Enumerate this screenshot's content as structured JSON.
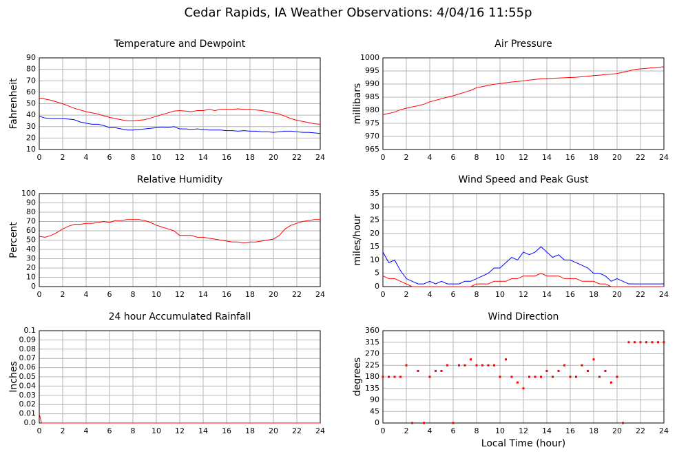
{
  "title": "Cedar Rapids, IA Weather Observations: 4/04/16 11:55p",
  "chart_data": [
    {
      "type": "line",
      "title": "Temperature and Dewpoint",
      "y_label": "Fahrenheit",
      "x": [
        0,
        0.5,
        1,
        1.5,
        2,
        2.5,
        3,
        3.5,
        4,
        4.5,
        5,
        5.5,
        6,
        6.5,
        7,
        7.5,
        8,
        8.5,
        9,
        9.5,
        10,
        10.5,
        11,
        11.5,
        12,
        12.5,
        13,
        13.5,
        14,
        14.5,
        15,
        15.5,
        16,
        16.5,
        17,
        17.5,
        18,
        18.5,
        19,
        19.5,
        20,
        20.5,
        21,
        21.5,
        22,
        22.5,
        23,
        23.5,
        24
      ],
      "series": [
        {
          "color": "#ff0000",
          "values": [
            55,
            54,
            53,
            51.5,
            50,
            48,
            46,
            44.5,
            43,
            42,
            41,
            39.5,
            38,
            37,
            36,
            35,
            35,
            35.5,
            36,
            37.5,
            39,
            40.5,
            42,
            43.5,
            44,
            43.5,
            43,
            44,
            44,
            45,
            44,
            45,
            45,
            45,
            45.5,
            45,
            45,
            44.5,
            44,
            43,
            42,
            41,
            39,
            37,
            35.5,
            34.5,
            33.5,
            32.5,
            32
          ]
        },
        {
          "color": "#0000ff",
          "values": [
            39,
            37.5,
            37,
            37,
            37,
            36.5,
            36,
            34,
            33,
            32,
            32,
            31,
            29,
            29,
            28,
            27,
            27,
            27.5,
            28,
            28.5,
            29,
            29.5,
            29,
            30,
            28,
            28,
            27.5,
            28,
            27.5,
            27,
            27,
            27,
            26.5,
            26.5,
            26,
            26.5,
            26,
            26,
            25.5,
            25.5,
            25,
            25.5,
            26,
            26,
            25.5,
            25,
            25,
            24.5,
            24
          ]
        }
      ],
      "xlim": [
        0,
        24
      ],
      "xticks": [
        0,
        2,
        4,
        6,
        8,
        10,
        12,
        14,
        16,
        18,
        20,
        22,
        24
      ],
      "ylim": [
        10,
        90
      ],
      "yticks": [
        10,
        20,
        30,
        40,
        50,
        60,
        70,
        80,
        90
      ],
      "grid": true
    },
    {
      "type": "line",
      "title": "Air Pressure",
      "y_label": "millibars",
      "x": [
        0,
        0.5,
        1,
        1.5,
        2,
        2.5,
        3,
        3.5,
        4,
        4.5,
        5,
        5.5,
        6,
        6.5,
        7,
        7.5,
        8,
        8.5,
        9,
        9.5,
        10,
        10.5,
        11,
        11.5,
        12,
        12.5,
        13,
        13.5,
        14,
        14.5,
        15,
        15.5,
        16,
        16.5,
        17,
        17.5,
        18,
        18.5,
        19,
        19.5,
        20,
        20.5,
        21,
        21.5,
        22,
        22.5,
        23,
        23.5,
        24
      ],
      "series": [
        {
          "color": "#ff0000",
          "values": [
            978.3,
            978.8,
            979.3,
            980.2,
            980.8,
            981.3,
            981.7,
            982.3,
            983.2,
            983.8,
            984.4,
            985,
            985.5,
            986.2,
            986.9,
            987.6,
            988.6,
            989,
            989.5,
            989.9,
            990.2,
            990.5,
            990.8,
            991,
            991.2,
            991.5,
            991.8,
            992,
            992.1,
            992.2,
            992.3,
            992.4,
            992.5,
            992.6,
            992.8,
            993,
            993.2,
            993.4,
            993.6,
            993.8,
            994,
            994.5,
            995,
            995.6,
            995.8,
            996,
            996.2,
            996.4,
            996.6
          ]
        }
      ],
      "xlim": [
        0,
        24
      ],
      "xticks": [
        0,
        2,
        4,
        6,
        8,
        10,
        12,
        14,
        16,
        18,
        20,
        22,
        24
      ],
      "ylim": [
        965,
        1000
      ],
      "yticks": [
        965,
        970,
        975,
        980,
        985,
        990,
        995,
        1000
      ],
      "grid": true
    },
    {
      "type": "line",
      "title": "Relative Humidity",
      "y_label": "Percent",
      "x": [
        0,
        0.5,
        1,
        1.5,
        2,
        2.5,
        3,
        3.5,
        4,
        4.5,
        5,
        5.5,
        6,
        6.5,
        7,
        7.5,
        8,
        8.5,
        9,
        9.5,
        10,
        10.5,
        11,
        11.5,
        12,
        12.5,
        13,
        13.5,
        14,
        14.5,
        15,
        15.5,
        16,
        16.5,
        17,
        17.5,
        18,
        18.5,
        19,
        19.5,
        20,
        20.5,
        21,
        21.5,
        22,
        22.5,
        23,
        23.5,
        24
      ],
      "series": [
        {
          "color": "#ff0000",
          "values": [
            54,
            53,
            55,
            58,
            62,
            65,
            67,
            67,
            68,
            68,
            69,
            70,
            69,
            71,
            71,
            72,
            72,
            72,
            71,
            69,
            66,
            64,
            62,
            60,
            55,
            55,
            55,
            53,
            53,
            52,
            51,
            50,
            49,
            48,
            48,
            47,
            48,
            48,
            49,
            50,
            51,
            55,
            62,
            66,
            68,
            70,
            71,
            72,
            72
          ]
        }
      ],
      "xlim": [
        0,
        24
      ],
      "xticks": [
        0,
        2,
        4,
        6,
        8,
        10,
        12,
        14,
        16,
        18,
        20,
        22,
        24
      ],
      "ylim": [
        0,
        100
      ],
      "yticks": [
        0,
        10,
        20,
        30,
        40,
        50,
        60,
        70,
        80,
        90,
        100
      ],
      "grid": true
    },
    {
      "type": "line",
      "title": "Wind Speed and Peak Gust",
      "y_label": "miles/hour",
      "x": [
        0,
        0.5,
        1,
        1.5,
        2,
        2.5,
        3,
        3.5,
        4,
        4.5,
        5,
        5.5,
        6,
        6.5,
        7,
        7.5,
        8,
        8.5,
        9,
        9.5,
        10,
        10.5,
        11,
        11.5,
        12,
        12.5,
        13,
        13.5,
        14,
        14.5,
        15,
        15.5,
        16,
        16.5,
        17,
        17.5,
        18,
        18.5,
        19,
        19.5,
        20,
        20.5,
        21,
        21.5,
        22,
        22.5,
        23,
        23.5,
        24
      ],
      "series": [
        {
          "color": "#0000ff",
          "values": [
            13,
            9,
            10,
            6,
            3,
            2,
            1,
            1,
            2,
            1,
            2,
            1,
            1,
            1,
            2,
            2,
            3,
            4,
            5,
            7,
            7,
            9,
            11,
            10,
            13,
            12,
            13,
            15,
            13,
            11,
            12,
            10,
            10,
            9,
            8,
            7,
            5,
            5,
            4,
            2,
            3,
            2,
            1,
            1,
            1,
            1,
            1,
            1,
            1
          ]
        },
        {
          "color": "#ff0000",
          "values": [
            4,
            3,
            3,
            2,
            1,
            0,
            0,
            0,
            0,
            0,
            0,
            0,
            0,
            0,
            0,
            0,
            1,
            1,
            1,
            2,
            2,
            2,
            3,
            3,
            4,
            4,
            4,
            5,
            4,
            4,
            4,
            3,
            3,
            3,
            2,
            2,
            2,
            1,
            1,
            0,
            0,
            0,
            0,
            0,
            0,
            0,
            0,
            0,
            0
          ]
        }
      ],
      "xlim": [
        0,
        24
      ],
      "xticks": [
        0,
        2,
        4,
        6,
        8,
        10,
        12,
        14,
        16,
        18,
        20,
        22,
        24
      ],
      "ylim": [
        0,
        35
      ],
      "yticks": [
        0,
        5,
        10,
        15,
        20,
        25,
        30,
        35
      ],
      "grid": true
    },
    {
      "type": "line",
      "title": "24 hour Accumulated Rainfall",
      "y_label": "Inches",
      "x": [
        0,
        0.2,
        24
      ],
      "series": [
        {
          "color": "#ff0000",
          "values": [
            0.01,
            0,
            0
          ]
        }
      ],
      "xlim": [
        0,
        24
      ],
      "xticks": [
        0,
        2,
        4,
        6,
        8,
        10,
        12,
        14,
        16,
        18,
        20,
        22,
        24
      ],
      "ylim": [
        0,
        0.1
      ],
      "yticks": [
        {
          "value": 0,
          "label": "0.0"
        },
        0.01,
        0.02,
        0.03,
        0.04,
        0.05,
        0.06,
        0.07,
        0.08,
        0.09,
        0.1
      ],
      "grid": true
    },
    {
      "type": "scatter",
      "title": "Wind Direction",
      "y_label": "degrees",
      "x_label": "Local Time (hour)",
      "x": [
        0,
        0.5,
        1,
        1.5,
        2,
        2.5,
        3,
        3.5,
        4,
        4.5,
        5,
        5.5,
        6,
        6.5,
        7,
        7.5,
        8,
        8.5,
        9,
        9.5,
        10,
        10.5,
        11,
        11.5,
        12,
        12.5,
        13,
        13.5,
        14,
        14.5,
        15,
        15.5,
        16,
        16.5,
        17,
        17.5,
        18,
        18.5,
        19,
        19.5,
        20,
        20.5,
        21,
        21.5,
        22,
        22.5,
        23,
        23.5,
        24
      ],
      "series": [
        {
          "color": "#ff0000",
          "values": [
            180,
            180,
            180,
            180,
            225,
            0,
            203,
            0,
            180,
            203,
            203,
            225,
            0,
            225,
            225,
            248,
            225,
            225,
            225,
            225,
            180,
            248,
            180,
            158,
            135,
            180,
            180,
            180,
            203,
            180,
            203,
            225,
            180,
            180,
            225,
            203,
            248,
            180,
            203,
            158,
            180,
            0,
            315,
            315,
            315,
            315,
            315,
            315,
            315
          ]
        }
      ],
      "xlim": [
        0,
        24
      ],
      "xticks": [
        0,
        2,
        4,
        6,
        8,
        10,
        12,
        14,
        16,
        18,
        20,
        22,
        24
      ],
      "ylim": [
        0,
        360
      ],
      "yticks": [
        0,
        45,
        90,
        135,
        180,
        225,
        270,
        315,
        360
      ],
      "grid": true
    }
  ]
}
